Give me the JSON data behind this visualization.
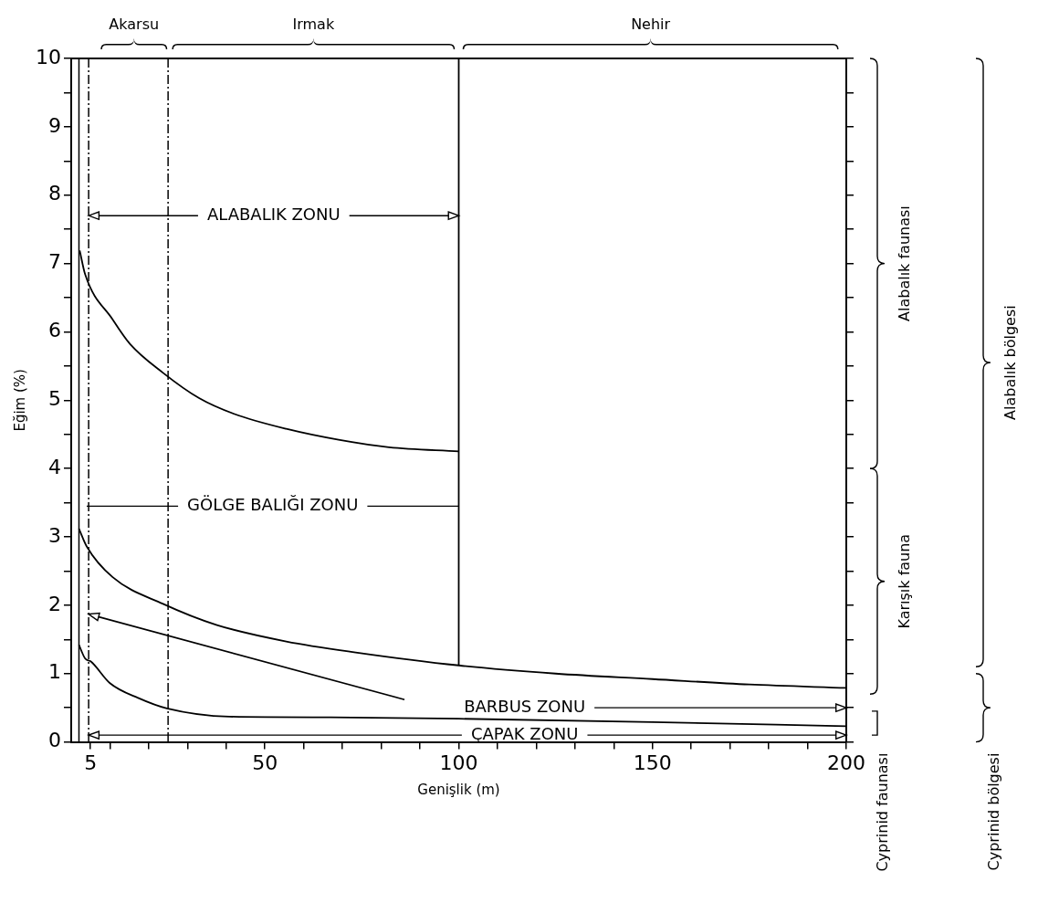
{
  "chart_data": {
    "type": "line",
    "xlabel": "Genişlik (m)",
    "ylabel": "Eğim (%)",
    "marker": "none",
    "line_style": "solid",
    "xlim": [
      0,
      200
    ],
    "xticks": [
      5,
      {
        "value": 10,
        "label": null
      },
      {
        "value": 20,
        "label": null
      },
      {
        "value": 30,
        "label": null
      },
      {
        "value": 40,
        "label": null
      },
      50,
      {
        "value": 60,
        "label": null
      },
      {
        "value": 70,
        "label": null
      },
      {
        "value": 80,
        "label": null
      },
      {
        "value": 90,
        "label": null
      },
      100,
      {
        "value": 110,
        "label": null
      },
      {
        "value": 120,
        "label": null
      },
      {
        "value": 130,
        "label": null
      },
      {
        "value": 140,
        "label": null
      },
      150,
      {
        "value": 160,
        "label": null
      },
      {
        "value": 170,
        "label": null
      },
      {
        "value": 180,
        "label": null
      },
      {
        "value": 190,
        "label": null
      },
      200
    ],
    "ylim": [
      0,
      10
    ],
    "yticks": [
      0,
      {
        "value": 0.5,
        "label": null
      },
      1,
      {
        "value": 1.5,
        "label": null
      },
      2,
      {
        "value": 2.5,
        "label": null
      },
      3,
      {
        "value": 3.5,
        "label": null
      },
      4,
      {
        "value": 4.5,
        "label": null
      },
      5,
      {
        "value": 5.5,
        "label": null
      },
      6,
      {
        "value": 6.5,
        "label": null
      },
      7,
      {
        "value": 7.5,
        "label": null
      },
      8,
      {
        "value": 8.5,
        "label": null
      },
      9,
      {
        "value": 9.5,
        "label": null
      },
      10
    ],
    "series": [
      {
        "type": "line",
        "color": "#000000",
        "x": [
          2.2,
          3.6,
          10.7,
          15.2,
          23.7,
          33,
          42,
          55.5,
          69,
          82,
          100
        ],
        "values": [
          7.19,
          6.84,
          6.18,
          5.82,
          5.4,
          5.03,
          4.8,
          4.58,
          4.42,
          4.31,
          4.25
        ]
      },
      {
        "type": "line",
        "color": "#000000",
        "x": [
          2,
          4,
          10.7,
          23.7,
          37.6,
          55.5,
          73.4,
          100,
          125,
          150,
          175,
          200
        ],
        "values": [
          3.12,
          2.86,
          2.41,
          2.02,
          1.71,
          1.47,
          1.31,
          1.12,
          1.0,
          0.92,
          0.84,
          0.79
        ]
      },
      {
        "type": "line",
        "color": "#000000",
        "x": [
          2,
          3.6,
          5,
          10,
          17.4,
          24.7,
          40.8,
          67,
          100,
          150,
          200
        ],
        "values": [
          1.42,
          1.22,
          1.18,
          0.86,
          0.64,
          0.49,
          0.37,
          0.36,
          0.34,
          0.29,
          0.23
        ]
      },
      {
        "type": "line",
        "color": "#000000",
        "x": [
          100,
          100
        ],
        "values": [
          1.12,
          10
        ]
      }
    ],
    "ref_lines": [
      {
        "axis": "x",
        "value": 2,
        "color": "#000000",
        "line_style": "solid"
      },
      {
        "axis": "x",
        "value": 4.5,
        "color": "#000000",
        "line_style": "dashed"
      },
      {
        "axis": "x",
        "value": 25,
        "color": "#000000",
        "line_style": "dashed"
      }
    ],
    "annotations": [
      {
        "text": "ALABALIK ZONU",
        "x": 100,
        "y": 7.7
      },
      {
        "text": "GÖLGE BALIĞI ZONU",
        "x": 100,
        "y": 3.45
      },
      "BARBUS ZONU",
      "ÇAPAK ZONU",
      "Akarsu",
      "Irmak",
      "Nehir",
      "Alabalık faunası",
      "Karışık fauna",
      "Cyprinid faunası",
      "Alabalık bölgesi",
      "Cyprinid bölgesi"
    ]
  }
}
